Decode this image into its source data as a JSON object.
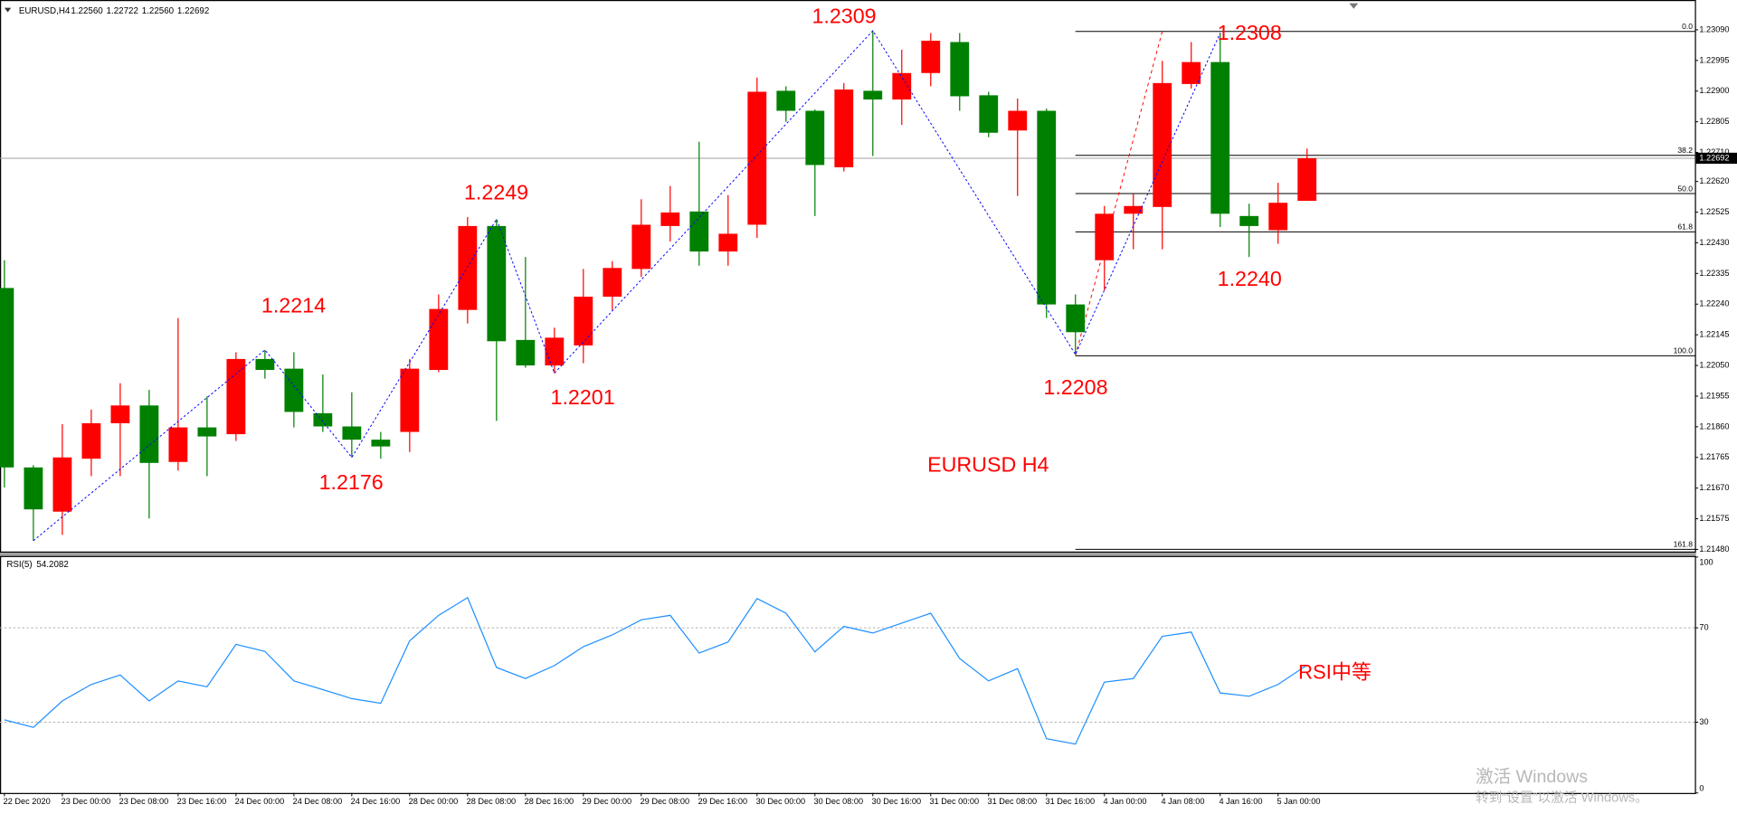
{
  "chart_data": [
    {
      "type": "candlestick",
      "title": "EURUSD,H4",
      "ohlc_labels": [
        "1.22560",
        "1.22722",
        "1.22560",
        "1.22692"
      ],
      "categories": [
        "22 Dec 2020",
        null,
        "23 Dec 00:00",
        null,
        "23 Dec 08:00",
        null,
        "23 Dec 16:00",
        null,
        "24 Dec 00:00",
        null,
        "24 Dec 08:00",
        null,
        "24 Dec 16:00",
        null,
        "28 Dec 00:00",
        null,
        "28 Dec 08:00",
        null,
        "28 Dec 16:00",
        null,
        "29 Dec 00:00",
        null,
        "29 Dec 08:00",
        null,
        "29 Dec 16:00",
        null,
        "30 Dec 00:00",
        null,
        "30 Dec 08:00",
        null,
        "30 Dec 16:00",
        null,
        "31 Dec 00:00",
        null,
        "31 Dec 08:00",
        null,
        "31 Dec 16:00",
        null,
        "4 Jan 00:00",
        null,
        "4 Jan 08:00",
        null,
        "4 Jan 16:00",
        null,
        "5 Jan 00:00",
        null
      ],
      "open": [
        1.2229,
        1.21734,
        1.21597,
        1.21761,
        1.21871,
        1.21926,
        1.21751,
        1.21858,
        1.21837,
        1.2207,
        1.2204,
        1.21902,
        1.21861,
        1.2182,
        1.21844,
        1.22036,
        1.22222,
        1.22482,
        1.22129,
        1.2205,
        1.22112,
        1.22263,
        1.22349,
        1.22482,
        1.22527,
        1.22403,
        1.22486,
        1.22901,
        1.22839,
        1.22664,
        1.22901,
        1.22874,
        1.22956,
        1.23052,
        1.22887,
        1.22778,
        1.22839,
        1.22239,
        1.22376,
        1.2252,
        1.22541,
        1.22922,
        1.2299,
        1.22513,
        1.22469,
        1.2256
      ],
      "high": [
        1.22376,
        1.21741,
        1.21868,
        1.21913,
        1.21995,
        1.21974,
        1.22197,
        1.21954,
        1.22091,
        1.22098,
        1.22091,
        1.22022,
        1.21967,
        1.21844,
        1.2207,
        1.2227,
        1.2251,
        1.22503,
        1.22386,
        1.22167,
        1.22349,
        1.22373,
        1.22565,
        1.22606,
        1.22743,
        1.22578,
        1.22942,
        1.22915,
        1.22843,
        1.22925,
        1.23087,
        1.23028,
        1.2308,
        1.2308,
        1.22898,
        1.22877,
        1.22846,
        1.2227,
        1.22544,
        1.22582,
        1.22994,
        1.23052,
        1.2308,
        1.22551,
        1.22616,
        1.22722
      ],
      "low": [
        1.21672,
        1.21507,
        1.21525,
        1.21707,
        1.21707,
        1.21576,
        1.21724,
        1.21707,
        1.21816,
        1.22009,
        1.21858,
        1.21844,
        1.21765,
        1.21761,
        1.21782,
        1.22029,
        1.2218,
        1.21878,
        1.22043,
        1.22026,
        1.22057,
        1.22222,
        1.22324,
        1.22434,
        1.22359,
        1.22359,
        1.22445,
        1.22805,
        1.22513,
        1.22651,
        1.22699,
        1.22795,
        1.22915,
        1.22839,
        1.22757,
        1.22575,
        1.22197,
        1.22084,
        1.22283,
        1.2241,
        1.2241,
        1.22908,
        1.22479,
        1.22386,
        1.22427,
        1.2256
      ],
      "close": [
        1.21734,
        1.21604,
        1.21765,
        1.21871,
        1.21926,
        1.21748,
        1.21858,
        1.2183,
        1.2207,
        1.22036,
        1.21906,
        1.21861,
        1.2182,
        1.21799,
        1.2204,
        1.22225,
        1.22482,
        1.22125,
        1.2205,
        1.22136,
        1.22263,
        1.22352,
        1.22486,
        1.22524,
        1.22403,
        1.22458,
        1.22898,
        1.22839,
        1.22671,
        1.22905,
        1.22874,
        1.22956,
        1.23056,
        1.22884,
        1.22771,
        1.22839,
        1.22239,
        1.22153,
        1.2252,
        1.22544,
        1.22925,
        1.2299,
        1.2252,
        1.22482,
        1.22554,
        1.22692
      ],
      "up_color": "#ff0000",
      "down_color": "#008000",
      "ylim": [
        1.2147,
        1.23172
      ],
      "yticks": [
        {
          "value": 1.2309,
          "label": "1.23090"
        },
        {
          "value": 1.22995,
          "label": "1.22995"
        },
        {
          "value": 1.229,
          "label": "1.22900"
        },
        {
          "value": 1.22805,
          "label": "1.22805"
        },
        {
          "value": 1.2271,
          "label": "1.22710"
        },
        {
          "value": 1.2262,
          "label": "1.22620"
        },
        {
          "value": 1.22525,
          "label": "1.22525"
        },
        {
          "value": 1.2243,
          "label": "1.22430"
        },
        {
          "value": 1.22335,
          "label": "1.22335"
        },
        {
          "value": 1.2224,
          "label": "1.22240"
        },
        {
          "value": 1.22145,
          "label": "1.22145"
        },
        {
          "value": 1.2205,
          "label": "1.22050"
        },
        {
          "value": 1.21955,
          "label": "1.21955"
        },
        {
          "value": 1.2186,
          "label": "1.21860"
        },
        {
          "value": 1.21765,
          "label": "1.21765"
        },
        {
          "value": 1.2167,
          "label": "1.21670"
        },
        {
          "value": 1.21575,
          "label": "1.21575"
        },
        {
          "value": 1.2148,
          "label": "1.21480"
        }
      ],
      "last_price_label": "1.22692",
      "zigzag": [
        1,
        9,
        12,
        17,
        19,
        30,
        37,
        42
      ],
      "zigzag_color": "#0000ff",
      "fibonacci": {
        "high": 1.23085,
        "low": 1.2208,
        "color": "#000000",
        "trend_color": "#ff0000",
        "levels": [
          {
            "value": 0,
            "label": "0.0"
          },
          {
            "value": 38.2,
            "label": "38.2"
          },
          {
            "value": 50,
            "label": "50.0"
          },
          {
            "value": 61.8,
            "label": "61.8"
          },
          {
            "value": 100,
            "label": "100.0"
          },
          {
            "value": 161.8,
            "label": "161.8"
          }
        ]
      },
      "annotations": [
        "1.2309",
        "1.2214",
        "1.2249",
        "1.2176",
        "1.2201",
        "1.2208",
        "1.2308",
        "1.2240",
        "EURUSD H4"
      ]
    },
    {
      "type": "line",
      "title": "RSI(5)",
      "values": [
        31,
        27.8,
        39,
        46,
        50,
        39,
        47.5,
        45,
        63,
        60,
        47.5,
        43.8,
        40,
        38,
        64.5,
        75.3,
        82.8,
        53.2,
        48.5,
        54,
        62,
        67,
        73.4,
        75.3,
        59.3,
        64,
        82.4,
        76.2,
        59.8,
        70.6,
        67.8,
        72,
        76.2,
        57,
        47.5,
        52.7,
        23,
        20.7,
        47,
        48.5,
        66.4,
        68.2,
        42.4,
        41,
        46,
        54.2082
      ],
      "color": "#1e90ff",
      "ylim": [
        0,
        100
      ],
      "yticks": [
        100,
        70,
        30,
        0
      ],
      "annotations": [
        "RSI中等"
      ]
    }
  ],
  "watermark": {
    "line1": "激活 Windows",
    "line2": "转到“设置”以激活 Windows。"
  }
}
